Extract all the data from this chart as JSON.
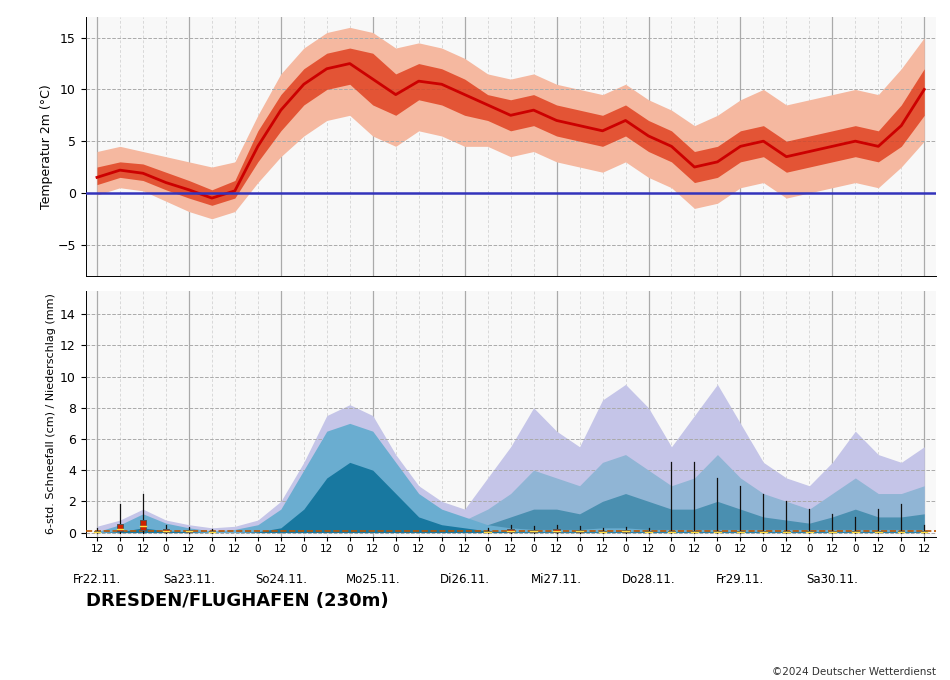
{
  "station_name": "DRESDEN/FLUGHAFEN (230m)",
  "copyright": "©2024 Deutscher Wetterdienst",
  "temp_ylabel": "Temperatur 2m (°C)",
  "precip_ylabel": "6-std. Schneefall (cm) / Niederschlag (mm)",
  "temp_ylim": [
    -8,
    17
  ],
  "precip_ylim": [
    -0.3,
    15.5
  ],
  "n_steps": 37,
  "day_labels": [
    "Fr22.11.",
    "Sa23.11.",
    "So24.11.",
    "Mo25.11.",
    "Di26.11.",
    "Mi27.11.",
    "Do28.11.",
    "Fr29.11.",
    "Sa30.11."
  ],
  "day_tick_pos": [
    0,
    4,
    8,
    12,
    16,
    20,
    24,
    28,
    32
  ],
  "hour_tick_pos": [
    0,
    1,
    2,
    3,
    4,
    5,
    6,
    7,
    8,
    9,
    10,
    11,
    12,
    13,
    14,
    15,
    16,
    17,
    18,
    19,
    20,
    21,
    22,
    23,
    24,
    25,
    26,
    27,
    28,
    29,
    30,
    31,
    32,
    33,
    34,
    35,
    36
  ],
  "hour_tick_labels": [
    "12",
    "0",
    "12",
    "0",
    "12",
    "0",
    "12",
    "0",
    "12",
    "0",
    "12",
    "0",
    "12",
    "0",
    "12",
    "0",
    "12",
    "0",
    "12",
    "0",
    "12",
    "0",
    "12",
    "0",
    "12",
    "0",
    "12",
    "0",
    "12",
    "0",
    "12",
    "0",
    "12",
    "0",
    "12",
    "0",
    "12"
  ],
  "temp_mean": [
    1.5,
    2.2,
    1.9,
    1.0,
    0.3,
    -0.5,
    0.2,
    4.5,
    8.0,
    10.5,
    12.0,
    12.5,
    11.0,
    9.5,
    10.8,
    10.5,
    9.5,
    8.5,
    7.5,
    8.0,
    7.0,
    6.5,
    6.0,
    7.0,
    5.5,
    4.5,
    2.5,
    3.0,
    4.5,
    5.0,
    3.5,
    4.0,
    4.5,
    5.0,
    4.5,
    6.5,
    10.0
  ],
  "temp_p25": [
    0.8,
    1.5,
    1.2,
    0.3,
    -0.5,
    -1.2,
    -0.5,
    3.0,
    6.0,
    8.5,
    10.0,
    10.5,
    8.5,
    7.5,
    9.0,
    8.5,
    7.5,
    7.0,
    6.0,
    6.5,
    5.5,
    5.0,
    4.5,
    5.5,
    4.0,
    3.0,
    1.0,
    1.5,
    3.0,
    3.5,
    2.0,
    2.5,
    3.0,
    3.5,
    3.0,
    4.5,
    7.5
  ],
  "temp_p75": [
    2.5,
    3.0,
    2.8,
    2.0,
    1.2,
    0.3,
    1.2,
    6.0,
    9.5,
    12.0,
    13.5,
    14.0,
    13.5,
    11.5,
    12.5,
    12.0,
    11.0,
    9.5,
    9.0,
    9.5,
    8.5,
    8.0,
    7.5,
    8.5,
    7.0,
    6.0,
    4.0,
    4.5,
    6.0,
    6.5,
    5.0,
    5.5,
    6.0,
    6.5,
    6.0,
    8.5,
    12.0
  ],
  "temp_p10": [
    -0.2,
    0.5,
    0.2,
    -0.8,
    -1.8,
    -2.5,
    -1.8,
    1.0,
    3.5,
    5.5,
    7.0,
    7.5,
    5.5,
    4.5,
    6.0,
    5.5,
    4.5,
    4.5,
    3.5,
    4.0,
    3.0,
    2.5,
    2.0,
    3.0,
    1.5,
    0.5,
    -1.5,
    -1.0,
    0.5,
    1.0,
    -0.5,
    0.0,
    0.5,
    1.0,
    0.5,
    2.5,
    5.0
  ],
  "temp_p90": [
    4.0,
    4.5,
    4.0,
    3.5,
    3.0,
    2.5,
    3.0,
    7.5,
    11.5,
    14.0,
    15.5,
    16.0,
    15.5,
    14.0,
    14.5,
    14.0,
    13.0,
    11.5,
    11.0,
    11.5,
    10.5,
    10.0,
    9.5,
    10.5,
    9.0,
    8.0,
    6.5,
    7.5,
    9.0,
    10.0,
    8.5,
    9.0,
    9.5,
    10.0,
    9.5,
    12.0,
    15.0
  ],
  "precip_p90": [
    0.4,
    0.8,
    1.5,
    0.8,
    0.5,
    0.3,
    0.4,
    0.8,
    2.0,
    4.5,
    7.5,
    8.2,
    7.5,
    5.0,
    3.0,
    2.0,
    1.5,
    3.5,
    5.5,
    8.0,
    6.5,
    5.5,
    8.5,
    9.5,
    8.0,
    5.5,
    7.5,
    9.5,
    7.0,
    4.5,
    3.5,
    3.0,
    4.5,
    6.5,
    5.0,
    4.5,
    5.5
  ],
  "precip_p75": [
    0.1,
    0.3,
    0.6,
    0.3,
    0.1,
    0.05,
    0.1,
    0.3,
    0.8,
    2.0,
    4.0,
    5.5,
    5.0,
    3.0,
    1.5,
    1.0,
    0.8,
    1.5,
    2.5,
    4.0,
    3.5,
    3.0,
    4.5,
    5.0,
    4.0,
    3.0,
    3.5,
    5.0,
    3.5,
    2.5,
    2.0,
    1.5,
    2.5,
    3.5,
    2.5,
    2.5,
    3.0
  ],
  "precip_p50": [
    0.0,
    0.1,
    0.2,
    0.1,
    0.0,
    0.0,
    0.0,
    0.05,
    0.3,
    0.8,
    1.5,
    2.5,
    2.0,
    1.2,
    0.5,
    0.3,
    0.3,
    0.5,
    1.0,
    1.5,
    1.5,
    1.2,
    2.0,
    2.5,
    2.0,
    1.5,
    1.5,
    2.0,
    1.5,
    1.0,
    0.8,
    0.6,
    1.0,
    1.5,
    1.0,
    1.0,
    1.2
  ],
  "snow_p90": [
    0.05,
    0.5,
    1.2,
    0.6,
    0.3,
    0.1,
    0.2,
    0.5,
    1.5,
    4.0,
    6.5,
    7.0,
    6.5,
    4.5,
    2.5,
    1.5,
    1.0,
    0.5,
    0.3,
    0.2,
    0.2,
    0.2,
    0.3,
    0.3,
    0.2,
    0.2,
    0.2,
    0.2,
    0.2,
    0.2,
    0.2,
    0.2,
    0.2,
    0.2,
    0.2,
    0.2,
    0.2
  ],
  "snow_p50": [
    0.0,
    0.05,
    0.3,
    0.1,
    0.05,
    0.0,
    0.0,
    0.05,
    0.3,
    1.5,
    3.5,
    4.5,
    4.0,
    2.5,
    1.0,
    0.5,
    0.3,
    0.1,
    0.05,
    0.05,
    0.05,
    0.05,
    0.05,
    0.05,
    0.05,
    0.05,
    0.05,
    0.05,
    0.05,
    0.05,
    0.05,
    0.05,
    0.05,
    0.05,
    0.05,
    0.05,
    0.05
  ],
  "boxplots": [
    {
      "x": 0,
      "wlo": 0.0,
      "whi": 0.3,
      "q1": 0.02,
      "q3": 0.12,
      "med": 0.06
    },
    {
      "x": 1,
      "wlo": 0.0,
      "whi": 1.8,
      "q1": 0.08,
      "q3": 0.55,
      "med": 0.22
    },
    {
      "x": 2,
      "wlo": 0.0,
      "whi": 2.5,
      "q1": 0.15,
      "q3": 0.8,
      "med": 0.4
    },
    {
      "x": 3,
      "wlo": 0.0,
      "whi": 0.5,
      "q1": 0.05,
      "q3": 0.25,
      "med": 0.12
    },
    {
      "x": 4,
      "wlo": 0.0,
      "whi": 0.35,
      "q1": 0.04,
      "q3": 0.18,
      "med": 0.09
    },
    {
      "x": 5,
      "wlo": 0.0,
      "whi": 0.2,
      "q1": 0.02,
      "q3": 0.1,
      "med": 0.05
    },
    {
      "x": 17,
      "wlo": 0.0,
      "whi": 0.3,
      "q1": 0.02,
      "q3": 0.12,
      "med": 0.06
    },
    {
      "x": 18,
      "wlo": 0.0,
      "whi": 0.5,
      "q1": 0.04,
      "q3": 0.2,
      "med": 0.1
    },
    {
      "x": 19,
      "wlo": 0.0,
      "whi": 0.4,
      "q1": 0.03,
      "q3": 0.15,
      "med": 0.07
    },
    {
      "x": 20,
      "wlo": 0.0,
      "whi": 0.5,
      "q1": 0.04,
      "q3": 0.2,
      "med": 0.1
    },
    {
      "x": 21,
      "wlo": 0.0,
      "whi": 0.4,
      "q1": 0.03,
      "q3": 0.15,
      "med": 0.07
    },
    {
      "x": 22,
      "wlo": 0.0,
      "whi": 0.3,
      "q1": 0.02,
      "q3": 0.12,
      "med": 0.06
    },
    {
      "x": 23,
      "wlo": 0.0,
      "whi": 0.35,
      "q1": 0.03,
      "q3": 0.14,
      "med": 0.07
    },
    {
      "x": 24,
      "wlo": 0.0,
      "whi": 0.3,
      "q1": 0.02,
      "q3": 0.12,
      "med": 0.06
    },
    {
      "x": 25,
      "wlo": 0.0,
      "whi": 4.5,
      "q1": 0.02,
      "q3": 0.12,
      "med": 0.06
    },
    {
      "x": 26,
      "wlo": 0.0,
      "whi": 4.5,
      "q1": 0.02,
      "q3": 0.12,
      "med": 0.06
    },
    {
      "x": 27,
      "wlo": 0.0,
      "whi": 3.5,
      "q1": 0.02,
      "q3": 0.12,
      "med": 0.06
    },
    {
      "x": 28,
      "wlo": 0.0,
      "whi": 3.0,
      "q1": 0.02,
      "q3": 0.12,
      "med": 0.06
    },
    {
      "x": 29,
      "wlo": 0.0,
      "whi": 2.5,
      "q1": 0.02,
      "q3": 0.12,
      "med": 0.06
    },
    {
      "x": 30,
      "wlo": 0.0,
      "whi": 2.0,
      "q1": 0.02,
      "q3": 0.12,
      "med": 0.06
    },
    {
      "x": 31,
      "wlo": 0.0,
      "whi": 1.5,
      "q1": 0.02,
      "q3": 0.1,
      "med": 0.05
    },
    {
      "x": 32,
      "wlo": 0.0,
      "whi": 1.2,
      "q1": 0.02,
      "q3": 0.1,
      "med": 0.05
    },
    {
      "x": 33,
      "wlo": 0.0,
      "whi": 1.0,
      "q1": 0.02,
      "q3": 0.1,
      "med": 0.05
    },
    {
      "x": 34,
      "wlo": 0.0,
      "whi": 1.5,
      "q1": 0.02,
      "q3": 0.1,
      "med": 0.05
    },
    {
      "x": 35,
      "wlo": 0.0,
      "whi": 1.8,
      "q1": 0.02,
      "q3": 0.1,
      "med": 0.05
    },
    {
      "x": 36,
      "wlo": 0.0,
      "whi": 0.5,
      "q1": 0.02,
      "q3": 0.1,
      "med": 0.05
    }
  ],
  "dashed_val": 0.08,
  "colors": {
    "temp_line": "#cc0000",
    "temp_p25_75": "#dd3311",
    "temp_p10_90": "#f5b8a0",
    "temp_zero": "#3333bb",
    "precip_p90_fill": "#c5c5e8",
    "precip_p75_fill": "#90b5d5",
    "precip_p50_fill": "#4a8fb0",
    "snow_p90_fill": "#6aadd0",
    "snow_p50_fill": "#1878a0",
    "dashed_line": "#bb5500",
    "vgrid_day": "#aaaaaa",
    "vgrid_6h": "#cccccc",
    "hgrid": "#aaaaaa",
    "boxplot_box": "#cc2200",
    "boxplot_whisker": "#111111",
    "bg": "#f8f8f8"
  }
}
